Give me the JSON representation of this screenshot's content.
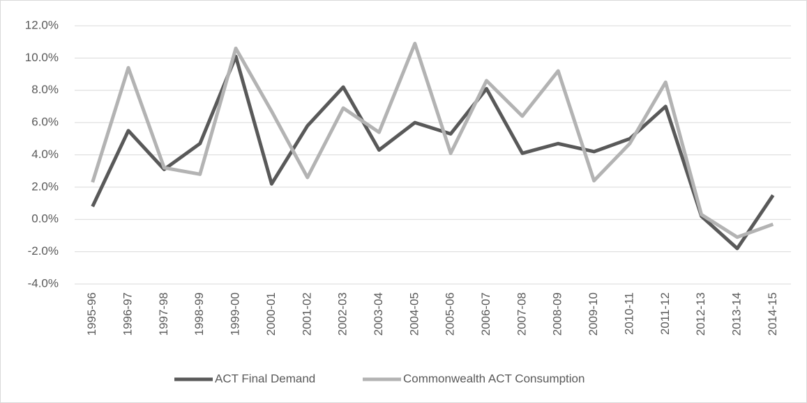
{
  "chart_data": {
    "type": "line",
    "categories": [
      "1995-96",
      "1996-97",
      "1997-98",
      "1998-99",
      "1999-00",
      "2000-01",
      "2001-02",
      "2002-03",
      "2003-04",
      "2004-05",
      "2005-06",
      "2006-07",
      "2007-08",
      "2008-09",
      "2009-10",
      "2010-11",
      "2011-12",
      "2012-13",
      "2013-14",
      "2014-15"
    ],
    "series": [
      {
        "name": "ACT Final Demand",
        "color": "#595959",
        "values": [
          0.8,
          5.5,
          3.1,
          4.7,
          10.1,
          2.2,
          5.8,
          8.2,
          4.3,
          6.0,
          5.3,
          8.1,
          4.1,
          4.7,
          4.2,
          5.0,
          7.0,
          0.2,
          -1.8,
          1.5
        ]
      },
      {
        "name": "Commonwealth ACT Consumption",
        "color": "#b3b3b3",
        "values": [
          2.3,
          9.4,
          3.2,
          2.8,
          10.6,
          6.7,
          2.6,
          6.9,
          5.4,
          10.9,
          4.1,
          8.6,
          6.4,
          9.2,
          2.4,
          4.7,
          8.5,
          0.3,
          -1.1,
          -0.3
        ]
      }
    ],
    "ylim": [
      -4,
      12
    ],
    "yticks": [
      {
        "value": -4,
        "label": "-4.0%"
      },
      {
        "value": -2,
        "label": "-2.0%"
      },
      {
        "value": 0,
        "label": "0.0%"
      },
      {
        "value": 2,
        "label": "2.0%"
      },
      {
        "value": 4,
        "label": "4.0%"
      },
      {
        "value": 6,
        "label": "6.0%"
      },
      {
        "value": 8,
        "label": "8.0%"
      },
      {
        "value": 10,
        "label": "10.0%"
      },
      {
        "value": 12,
        "label": "12.0%"
      }
    ],
    "grid": true,
    "legend": "bottom"
  }
}
